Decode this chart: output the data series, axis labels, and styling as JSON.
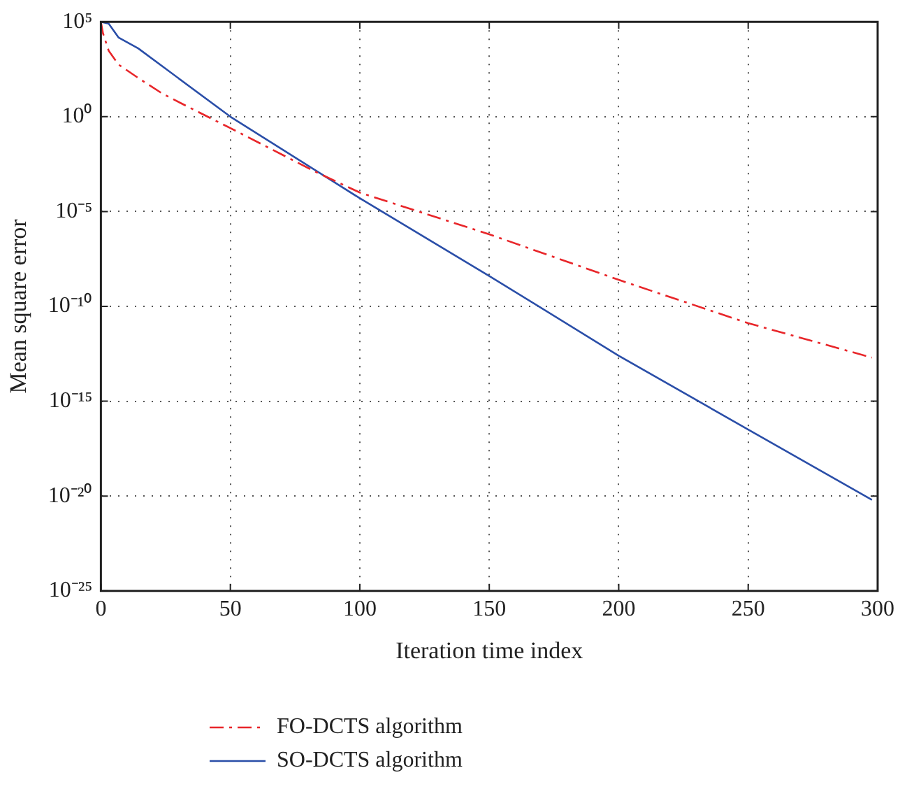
{
  "chart_data": {
    "type": "line",
    "xlabel": "Iteration time index",
    "ylabel": "Mean square error",
    "log": "y",
    "grid": true,
    "legend": "bottom left",
    "marker": "none",
    "xlim": [
      0,
      300
    ],
    "xticks": [
      0,
      50,
      100,
      150,
      200,
      250,
      300
    ],
    "ylim": [
      1e-25,
      100000.0
    ],
    "yticks": [
      {
        "value": 100000.0,
        "label": "10⁵"
      },
      {
        "value": 1,
        "label": "10⁰"
      },
      {
        "value": 1e-05,
        "label": "10⁻⁵"
      },
      {
        "value": 1e-10,
        "label": "10⁻¹⁰"
      },
      {
        "value": 1e-15,
        "label": "10⁻¹⁵"
      },
      {
        "value": 1e-20,
        "label": "10⁻²⁰"
      },
      {
        "value": 1e-25,
        "label": "10⁻²⁵"
      }
    ],
    "series": [
      {
        "name": "FO-DCTS algorithm",
        "color": "#e8262a",
        "line_style": "dashed",
        "x": [
          0,
          0.8,
          3,
          6.8,
          14.4,
          23.9,
          33.3,
          50,
          82.6,
          100,
          150,
          200,
          250,
          297.8
        ],
        "values": [
          100000.0,
          25000.0,
          3000.0,
          560.0,
          110.0,
          16,
          3.5,
          0.25,
          0.0013,
          0.0001,
          6.3e-07,
          2.5e-09,
          1.3e-11,
          2e-13
        ]
      },
      {
        "name": "SO-DCTS algorithm",
        "color": "#2a4ea8",
        "line_style": "solid",
        "x": [
          0,
          3,
          6.8,
          14.4,
          50,
          100,
          150,
          200,
          250,
          297.8
        ],
        "values": [
          100000.0,
          80000.0,
          15000.0,
          4000.0,
          1,
          5e-05,
          4e-09,
          2.5e-13,
          3.2e-17,
          6.3e-21
        ]
      }
    ]
  }
}
